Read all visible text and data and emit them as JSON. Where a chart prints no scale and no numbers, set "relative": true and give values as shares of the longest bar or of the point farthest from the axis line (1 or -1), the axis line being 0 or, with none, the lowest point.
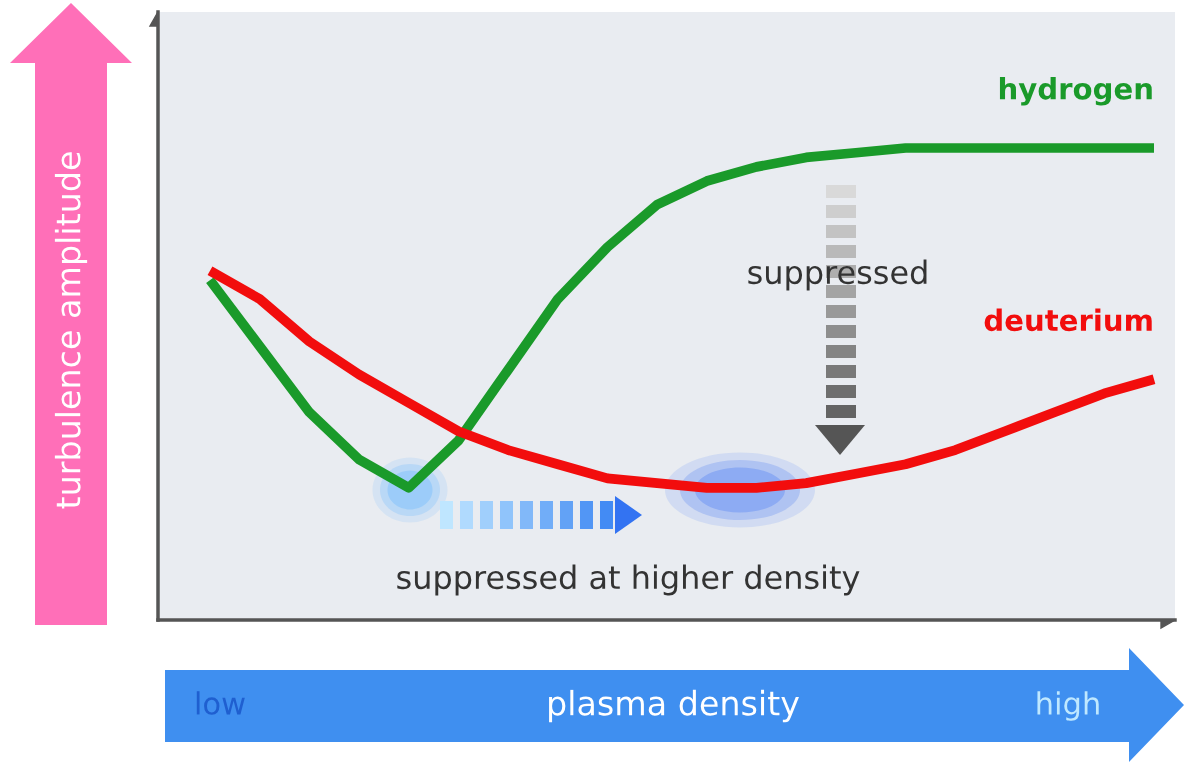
{
  "chart_data": {
    "type": "line",
    "relative": true,
    "xlabel": "plasma density",
    "ylabel": "turbulence amplitude",
    "categories": [
      null,
      null,
      null,
      null,
      null,
      null,
      null,
      null,
      null,
      null,
      null,
      null,
      null,
      null,
      null,
      null,
      null,
      null,
      null,
      null
    ],
    "series": [
      {
        "name": "hydrogen",
        "color": "#1a9a2a",
        "values": [
          0.72,
          0.58,
          0.44,
          0.34,
          0.28,
          0.38,
          0.53,
          0.68,
          0.79,
          0.88,
          0.93,
          0.96,
          0.98,
          0.99,
          1.0,
          1.0,
          1.0,
          1.0,
          1.0,
          1.0
        ]
      },
      {
        "name": "deuterium",
        "color": "#f20d0d",
        "values": [
          0.74,
          0.68,
          0.59,
          0.52,
          0.46,
          0.4,
          0.36,
          0.33,
          0.3,
          0.29,
          0.28,
          0.28,
          0.29,
          0.31,
          0.33,
          0.36,
          0.4,
          0.44,
          0.48,
          0.51
        ]
      }
    ],
    "annotations": [
      "suppressed",
      "suppressed at higher density",
      "low",
      "high"
    ],
    "legend": false,
    "grid": false,
    "marker": "none",
    "line_style": "solid"
  }
}
